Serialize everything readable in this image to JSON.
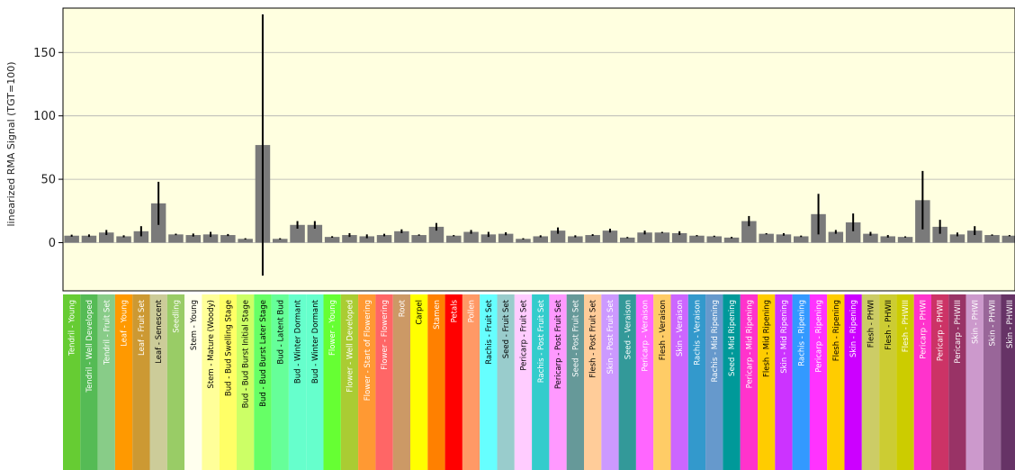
{
  "chart_data": {
    "type": "bar",
    "title": "",
    "xlabel": "",
    "ylabel": "linearized RMA Signal (TGT=100)",
    "ylim": [
      -38,
      185
    ],
    "yticks": [
      0,
      50,
      100,
      150
    ],
    "grid": "horizontal",
    "bar_color": "#7a7a7a",
    "error_color": "#000000",
    "plot_background": "#ffffe0",
    "background_bands": [
      {
        "from": 0,
        "to": 61,
        "color": "#ffffe0"
      },
      {
        "from": 64,
        "to": 67,
        "color": "#ffffe0"
      }
    ],
    "categories": [
      "Tendril - Young",
      "Tendril - Well Developed",
      "Tendril - Fruit Set",
      "Leaf - Young",
      "Leaf - Fruit Set",
      "Leaf - Senescent",
      "Seedling",
      "Stem - Young",
      "Stem - Mature (Woody)",
      "Bud - Bud Swelling Stage",
      "Bud - Bud Burst Initial Stage",
      "Bud - Bud Burst Later Stage",
      "Bud - Latent Bud",
      "Bud - Winter Dormant",
      "Bud - Winter Dormant",
      "Flower - Young",
      "Flower - Well Developed",
      "Flower - Start of Flowering",
      "Flower - Flowering",
      "Root",
      "Carpel",
      "Stamen",
      "Petals",
      "Pollen",
      "Rachis - Fruit Set",
      "Seed - Fruit Set",
      "Pericarp - Fruit Set",
      "Rachis - Post Fruit Set",
      "Pericarp - Post Fruit Set",
      "Seed - Post Fruit Set",
      "Flesh - Post Fruit Set",
      "Skin - Post Fruit Set",
      "Seed - Veraison",
      "Pericarp - Veraison",
      "Flesh - Veraison",
      "Skin - Veraison",
      "Rachis - Veraison",
      "Rachis - Mid Ripening",
      "Seed - Mid Ripening",
      "Pericarp - Mid Ripening",
      "Flesh - Mid Ripening",
      "Skin - Mid Ripening",
      "Rachis - Ripening",
      "Pericarp - Ripening",
      "Flesh - Ripening",
      "Skin - Ripening",
      "Flesh - PHWI",
      "Flesh - PHWII",
      "Flesh - PHWIII",
      "Pericarp - PHWI",
      "Pericarp - PHWII",
      "Pericarp - PHWIII",
      "Skin - PHWI",
      "Skin - PHWII",
      "Skin - PHWIII"
    ],
    "values": [
      5.5,
      5.5,
      8,
      5,
      9,
      31,
      6.5,
      6,
      6.5,
      6,
      3,
      77,
      3,
      14,
      14,
      4.5,
      6,
      5,
      6,
      9,
      6,
      12.5,
      5.5,
      8.5,
      6.5,
      7,
      3,
      5,
      9.5,
      5,
      6,
      9.5,
      4,
      8,
      8,
      7.5,
      5.5,
      5,
      4,
      17,
      7,
      6.5,
      5,
      22.5,
      8.5,
      16,
      7,
      5,
      4.5,
      33.5,
      12.5,
      6.5,
      9.5,
      6,
      5.5
    ],
    "errors": [
      0.8,
      1.0,
      2.0,
      0.8,
      4.0,
      17,
      0.6,
      1.2,
      2.0,
      0.8,
      0.5,
      103,
      0.5,
      3.0,
      3.0,
      0.6,
      1.5,
      1.5,
      1.0,
      1.5,
      0.5,
      3.0,
      0.5,
      1.5,
      2.0,
      1.2,
      0.5,
      0.8,
      2.5,
      0.8,
      0.7,
      1.5,
      0.5,
      1.5,
      0.5,
      1.5,
      0.5,
      0.5,
      0.6,
      4.0,
      0.5,
      1.0,
      0.6,
      16,
      1.5,
      7.0,
      1.5,
      1.0,
      0.5,
      23,
      5.5,
      1.5,
      3.5,
      0.5,
      0.5
    ],
    "label_colors": [
      "#66cc33",
      "#55bb55",
      "#88cc88",
      "#ff9900",
      "#cc9933",
      "#cccc99",
      "#99cc66",
      "#ffffee",
      "#ffff99",
      "#ffff66",
      "#ccff66",
      "#66ff66",
      "#66ff99",
      "#66ffcc",
      "#66ffcc",
      "#66ff33",
      "#aacc33",
      "#ff9933",
      "#ff6666",
      "#cc9966",
      "#ffff00",
      "#ff8000",
      "#ff0000",
      "#ff9966",
      "#66ffff",
      "#99cccc",
      "#ffccff",
      "#33cccc",
      "#ff99ff",
      "#669999",
      "#ffcc99",
      "#cc99ff",
      "#339999",
      "#ff66ff",
      "#ffcc66",
      "#cc66ff",
      "#3399cc",
      "#6699cc",
      "#009999",
      "#ff33cc",
      "#ffcc00",
      "#cc33ff",
      "#3399ff",
      "#ff33ff",
      "#ffcc00",
      "#cc00ff",
      "#cccc66",
      "#cccc33",
      "#cccc00",
      "#ff33cc",
      "#cc3366",
      "#993366",
      "#cc99cc",
      "#996699",
      "#663366"
    ],
    "label_text_colors": [
      "#ffffff",
      "#ffffff",
      "#ffffff",
      "#ffffff",
      "#ffffff",
      "#000000",
      "#ffffff",
      "#000000",
      "#000000",
      "#000000",
      "#000000",
      "#000000",
      "#000000",
      "#000000",
      "#000000",
      "#ffffff",
      "#ffffff",
      "#ffffff",
      "#ffffff",
      "#ffffff",
      "#000000",
      "#ffffff",
      "#ffffff",
      "#ffffff",
      "#000000",
      "#000000",
      "#000000",
      "#ffffff",
      "#000000",
      "#ffffff",
      "#000000",
      "#ffffff",
      "#ffffff",
      "#ffffff",
      "#000000",
      "#ffffff",
      "#ffffff",
      "#ffffff",
      "#ffffff",
      "#ffffff",
      "#000000",
      "#ffffff",
      "#ffffff",
      "#ffffff",
      "#000000",
      "#ffffff",
      "#000000",
      "#000000",
      "#ffffff",
      "#ffffff",
      "#ffffff",
      "#ffffff",
      "#ffffff",
      "#ffffff",
      "#ffffff"
    ]
  }
}
